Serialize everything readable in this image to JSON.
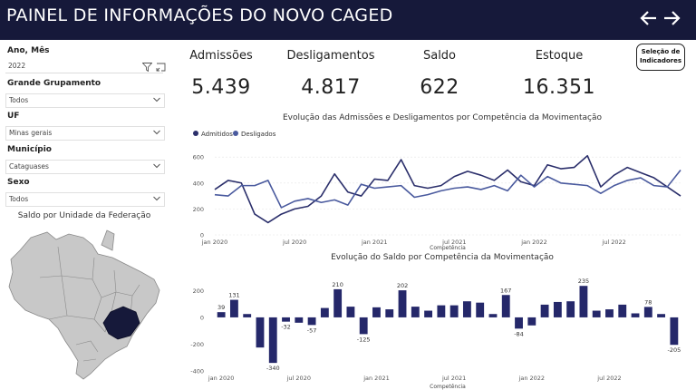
{
  "header": {
    "title": "PAINEL DE INFORMAÇÕES DO NOVO CAGED"
  },
  "nav": {
    "back_icon": "arrow-left-icon",
    "forward_icon": "arrow-right-icon"
  },
  "filters": {
    "ano_mes": {
      "label": "Ano, Mês",
      "value": "2022"
    },
    "grupamento": {
      "label": "Grande Grupamento",
      "value": "Todos"
    },
    "uf": {
      "label": "UF",
      "value": "Minas gerais"
    },
    "municipio": {
      "label": "Município",
      "value": "Cataguases"
    },
    "sexo": {
      "label": "Sexo",
      "value": "Todos"
    }
  },
  "map": {
    "title": "Saldo por Unidade da Federação",
    "highlight_color": "#16193a",
    "base_color": "#c8c8c8"
  },
  "kpis": [
    {
      "label": "Admissões",
      "value": "5.439"
    },
    {
      "label": "Desligamentos",
      "value": "4.817"
    },
    {
      "label": "Saldo",
      "value": "622"
    },
    {
      "label": "Estoque",
      "value": "16.351"
    }
  ],
  "selector_button": {
    "line1": "Seleção de",
    "line2": "Indicadores"
  },
  "chart_data": [
    {
      "type": "line",
      "title": "Evolução das Admissões e Desligamentos por Competência da Movimentação",
      "xlabel": "Competência",
      "ylabel": "",
      "x_ticks": [
        "jan 2020",
        "jul 2020",
        "jan 2021",
        "jul 2021",
        "jan 2022",
        "jul 2022"
      ],
      "y_ticks": [
        0,
        200,
        400,
        600
      ],
      "ylim": [
        0,
        650
      ],
      "legend_position": "top-left",
      "x": [
        "2020-01",
        "2020-02",
        "2020-03",
        "2020-04",
        "2020-05",
        "2020-06",
        "2020-07",
        "2020-08",
        "2020-09",
        "2020-10",
        "2020-11",
        "2020-12",
        "2021-01",
        "2021-02",
        "2021-03",
        "2021-04",
        "2021-05",
        "2021-06",
        "2021-07",
        "2021-08",
        "2021-09",
        "2021-10",
        "2021-11",
        "2021-12",
        "2022-01",
        "2022-02",
        "2022-03",
        "2022-04",
        "2022-05",
        "2022-06",
        "2022-07",
        "2022-08",
        "2022-09",
        "2022-10",
        "2022-11",
        "2022-12"
      ],
      "series": [
        {
          "name": "Admitidos",
          "color": "#2b2f6b",
          "values": [
            350,
            420,
            400,
            160,
            95,
            160,
            200,
            220,
            300,
            470,
            330,
            300,
            430,
            420,
            580,
            380,
            360,
            380,
            450,
            490,
            460,
            420,
            500,
            410,
            380,
            540,
            510,
            520,
            610,
            370,
            460,
            520,
            480,
            440,
            370,
            300
          ]
        },
        {
          "name": "Desligados",
          "color": "#4a5a9e",
          "values": [
            310,
            300,
            380,
            380,
            420,
            210,
            260,
            280,
            250,
            270,
            230,
            390,
            360,
            370,
            380,
            290,
            310,
            340,
            360,
            370,
            350,
            380,
            340,
            460,
            370,
            450,
            400,
            390,
            380,
            320,
            380,
            420,
            440,
            380,
            370,
            500
          ]
        }
      ]
    },
    {
      "type": "bar",
      "title": "Evolução do Saldo por Competência da Movimentação",
      "xlabel": "Competência",
      "ylabel": "",
      "x_ticks": [
        "jan 2020",
        "jul 2020",
        "jan 2021",
        "jul 2021",
        "jan 2022",
        "jul 2022"
      ],
      "y_ticks": [
        -400,
        -200,
        0,
        200
      ],
      "ylim": [
        -400,
        250
      ],
      "color": "#25286a",
      "categories": [
        "2020-01",
        "2020-02",
        "2020-03",
        "2020-04",
        "2020-05",
        "2020-06",
        "2020-07",
        "2020-08",
        "2020-09",
        "2020-10",
        "2020-11",
        "2020-12",
        "2021-01",
        "2021-02",
        "2021-03",
        "2021-04",
        "2021-05",
        "2021-06",
        "2021-07",
        "2021-08",
        "2021-09",
        "2021-10",
        "2021-11",
        "2021-12",
        "2022-01",
        "2022-02",
        "2022-03",
        "2022-04",
        "2022-05",
        "2022-06",
        "2022-07",
        "2022-08",
        "2022-09",
        "2022-10",
        "2022-11",
        "2022-12"
      ],
      "values": [
        39,
        131,
        25,
        -225,
        -340,
        -32,
        -40,
        -57,
        70,
        210,
        80,
        -125,
        75,
        60,
        202,
        80,
        50,
        90,
        90,
        120,
        110,
        25,
        167,
        -84,
        -60,
        95,
        115,
        120,
        235,
        50,
        60,
        95,
        30,
        78,
        25,
        -205
      ],
      "data_labels": {
        "0": "39",
        "1": "131",
        "4": "-340",
        "5": "-32",
        "7": "-57",
        "9": "210",
        "11": "-125",
        "14": "202",
        "22": "167",
        "23": "-84",
        "28": "235",
        "33": "78",
        "35": "-205"
      }
    }
  ]
}
